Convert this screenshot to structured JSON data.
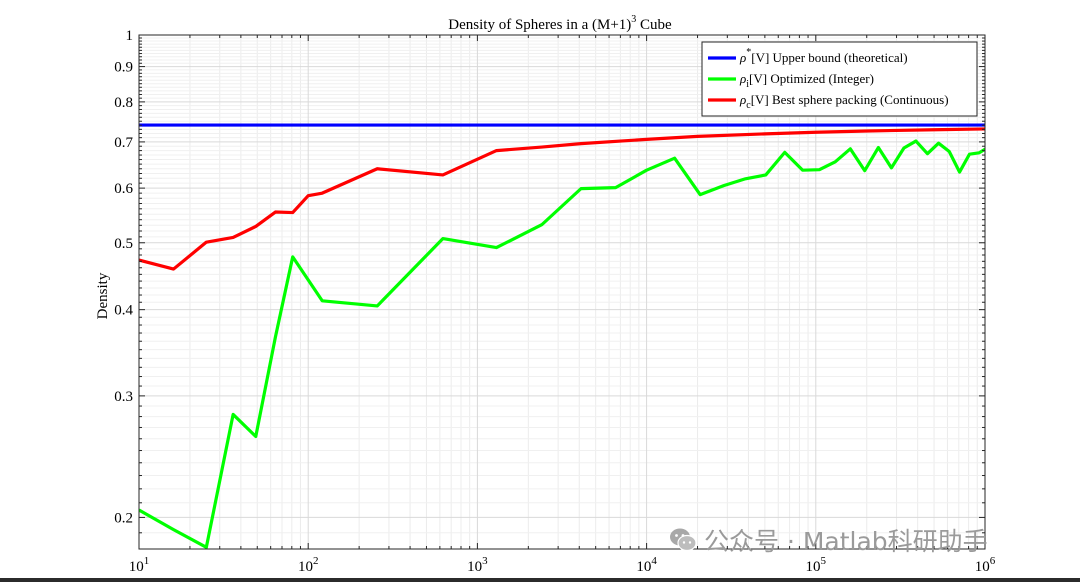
{
  "chart_data": {
    "type": "line",
    "title_main": "Density of Spheres in a (M+1)",
    "title_sup": "3",
    "title_tail": " Cube",
    "ylabel": "Density",
    "xscale": "log",
    "yscale": "log",
    "xlim": [
      10,
      1000000
    ],
    "ylim": [
      0.18,
      1
    ],
    "grid": true,
    "legend_position": "top-right",
    "xticks": [
      10,
      100,
      1000,
      10000,
      100000,
      1000000
    ],
    "xtick_labels": [
      {
        "base": "10",
        "exp": "1"
      },
      {
        "base": "10",
        "exp": "2"
      },
      {
        "base": "10",
        "exp": "3"
      },
      {
        "base": "10",
        "exp": "4"
      },
      {
        "base": "10",
        "exp": "5"
      },
      {
        "base": "10",
        "exp": "6"
      }
    ],
    "yticks": [
      0.2,
      0.3,
      0.4,
      0.5,
      0.6,
      0.7,
      0.8,
      0.9,
      1
    ],
    "ytick_labels": [
      "0.2",
      "0.3",
      "0.4",
      "0.5",
      "0.6",
      "0.7",
      "0.8",
      "0.9",
      "1"
    ],
    "series": [
      {
        "name": "Upper bound (theoretical)",
        "legend": {
          "sym": "ρ",
          "sub": "",
          "sup": "*",
          "text": "[V] Upper bound (theoretical)"
        },
        "color": "#0000ff",
        "x": [
          10,
          1000000
        ],
        "y": [
          0.7405,
          0.7405
        ]
      },
      {
        "name": "Optimized (Integer)",
        "legend": {
          "sym": "ρ",
          "sub": "i",
          "sup": "",
          "text": "[V] Optimized (Integer)"
        },
        "color": "#00ff00",
        "x": [
          10,
          16,
          25,
          36,
          49,
          64,
          81,
          121,
          256,
          625,
          1296,
          2401,
          4096,
          6561,
          10000,
          14641,
          20736,
          28561,
          38416,
          50625,
          65536,
          83521,
          104976,
          130321,
          160000,
          194481,
          234256,
          279841,
          331776,
          390625,
          456976,
          531441,
          614656,
          707281,
          810000,
          923521,
          1000000
        ],
        "y": [
          0.205,
          0.192,
          0.181,
          0.282,
          0.262,
          0.365,
          0.477,
          0.412,
          0.405,
          0.507,
          0.492,
          0.531,
          0.599,
          0.601,
          0.637,
          0.663,
          0.587,
          0.605,
          0.619,
          0.627,
          0.676,
          0.637,
          0.638,
          0.655,
          0.684,
          0.636,
          0.687,
          0.642,
          0.686,
          0.702,
          0.673,
          0.697,
          0.678,
          0.633,
          0.672,
          0.675,
          0.683
        ]
      },
      {
        "name": "Best sphere packing (Continuous)",
        "legend": {
          "sym": "ρ",
          "sub": "c",
          "sup": "",
          "text": "[V] Best sphere packing (Continuous)"
        },
        "color": "#ff0000",
        "x": [
          10,
          16,
          25,
          36,
          49,
          64,
          81,
          100,
          121,
          256,
          625,
          1296,
          2401,
          4096,
          10000,
          20000,
          50000,
          100000,
          200000,
          500000,
          1000000
        ],
        "y": [
          0.472,
          0.458,
          0.501,
          0.509,
          0.528,
          0.554,
          0.553,
          0.585,
          0.59,
          0.64,
          0.627,
          0.68,
          0.688,
          0.696,
          0.706,
          0.713,
          0.719,
          0.723,
          0.726,
          0.729,
          0.731
        ]
      }
    ]
  },
  "watermark": {
    "text": "公众号 · Matlab科研助手",
    "icon": "wechat-icon"
  }
}
